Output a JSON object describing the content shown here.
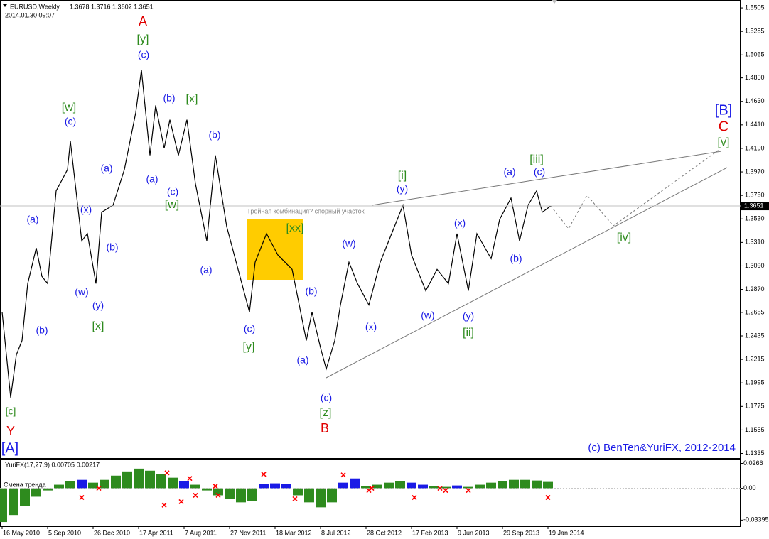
{
  "chart_data": [
    {
      "type": "line",
      "title": "EURUSD,Weekly",
      "subtitle": "1.3678 1.3716 1.3602 1.3651",
      "timestamp": "2014.01.30 09:07",
      "color": "#000000",
      "x": [
        0,
        3,
        5,
        7,
        9,
        12,
        14,
        16,
        19,
        23,
        24,
        28,
        30,
        33,
        35,
        39,
        43,
        47,
        49,
        52,
        54,
        57,
        59,
        62,
        65,
        68,
        72,
        75,
        79,
        83,
        87,
        89,
        93,
        97,
        102,
        104,
        107,
        109,
        112,
        114,
        117,
        119,
        122,
        125,
        129,
        133,
        136,
        141,
        144,
        149,
        153,
        157,
        160,
        164,
        167,
        172,
        175,
        179,
        182,
        185,
        188,
        190,
        193
      ],
      "values": [
        1.2658,
        1.1858,
        1.2258,
        1.2392,
        1.2925,
        1.3258,
        1.2992,
        1.2925,
        1.3792,
        1.3992,
        1.4258,
        1.3325,
        1.3392,
        1.2925,
        1.3592,
        1.3658,
        1.3992,
        1.4525,
        1.4925,
        1.4125,
        1.4592,
        1.4192,
        1.4458,
        1.4125,
        1.4458,
        1.3858,
        1.3325,
        1.4125,
        1.3458,
        1.3058,
        1.2658,
        1.3125,
        1.3392,
        1.3192,
        1.3058,
        1.2792,
        1.2392,
        1.2658,
        1.2325,
        1.2125,
        1.2392,
        1.2725,
        1.3125,
        1.2925,
        1.2725,
        1.3125,
        1.3325,
        1.3658,
        1.3192,
        1.2858,
        1.3058,
        1.2925,
        1.3392,
        1.2858,
        1.3392,
        1.3158,
        1.3525,
        1.3725,
        1.3325,
        1.3658,
        1.3792,
        1.3592,
        1.3651
      ],
      "xlim": [
        -0.75,
        259.75
      ],
      "xticks": [
        {
          "value": 0,
          "label": "16 May 2010"
        },
        {
          "value": 16,
          "label": "5 Sep 2010"
        },
        {
          "value": 32,
          "label": "26 Dec 2010"
        },
        {
          "value": 48,
          "label": "17 Apr 2011"
        },
        {
          "value": 64,
          "label": "7 Aug 2011"
        },
        {
          "value": 80,
          "label": "27 Nov 2011"
        },
        {
          "value": 96,
          "label": "18 Mar 2012"
        },
        {
          "value": 112,
          "label": "8 Jul 2012"
        },
        {
          "value": 128,
          "label": "28 Oct 2012"
        },
        {
          "value": 144,
          "label": "17 Feb 2013"
        },
        {
          "value": 160,
          "label": "9 Jun 2013"
        },
        {
          "value": 176,
          "label": "29 Sep 2013"
        },
        {
          "value": 192,
          "label": "19 Jan 2014"
        }
      ],
      "ylim": [
        1.1292,
        1.5572
      ],
      "yticks": [
        {
          "value": 1.5505,
          "label": "1.5505"
        },
        {
          "value": 1.5285,
          "label": "1.5285"
        },
        {
          "value": 1.5065,
          "label": "1.5065"
        },
        {
          "value": 1.485,
          "label": "1.4850"
        },
        {
          "value": 1.463,
          "label": "1.4630"
        },
        {
          "value": 1.441,
          "label": "1.4410"
        },
        {
          "value": 1.419,
          "label": "1.4190"
        },
        {
          "value": 1.397,
          "label": "1.3970"
        },
        {
          "value": 1.375,
          "label": "1.3750"
        },
        {
          "value": 1.353,
          "label": "1.3530"
        },
        {
          "value": 1.331,
          "label": "1.3310"
        },
        {
          "value": 1.309,
          "label": "1.3090"
        },
        {
          "value": 1.287,
          "label": "1.2870"
        },
        {
          "value": 1.2655,
          "label": "1.2655"
        },
        {
          "value": 1.2435,
          "label": "1.2435"
        },
        {
          "value": 1.2215,
          "label": "1.2215"
        },
        {
          "value": 1.1995,
          "label": "1.1995"
        },
        {
          "value": 1.1775,
          "label": "1.1775"
        },
        {
          "value": 1.1555,
          "label": "1.1555"
        },
        {
          "value": 1.1335,
          "label": "1.1335"
        }
      ],
      "last_price": {
        "value": 1.3651,
        "label": "1.3651"
      },
      "note": "Тройная комбинация? спорный участок",
      "copyright": "(c)  BenTen&YuriFX,  2012-2014",
      "annotations": [
        {
          "text": "A",
          "color": "#e00000"
        },
        {
          "text": "[y]",
          "color": "#2e8b1e"
        },
        {
          "text": "(c)",
          "color": "#1a1ae6"
        },
        {
          "text": "(b)",
          "color": "#1a1ae6"
        },
        {
          "text": "[x]",
          "color": "#2e8b1e"
        },
        {
          "text": "[w]",
          "color": "#2e8b1e"
        },
        {
          "text": "(c)",
          "color": "#1a1ae6"
        },
        {
          "text": "(b)",
          "color": "#1a1ae6"
        },
        {
          "text": "(a)",
          "color": "#1a1ae6"
        },
        {
          "text": "(a)",
          "color": "#1a1ae6"
        },
        {
          "text": "(c)",
          "color": "#1a1ae6"
        },
        {
          "text": "[w]",
          "color": "#2e8b1e"
        },
        {
          "text": "(x)",
          "color": "#1a1ae6"
        },
        {
          "text": "(a)",
          "color": "#1a1ae6"
        },
        {
          "text": "(b)",
          "color": "#1a1ae6"
        },
        {
          "text": "(w)",
          "color": "#1a1ae6"
        },
        {
          "text": "(y)",
          "color": "#1a1ae6"
        },
        {
          "text": "[x]",
          "color": "#2e8b1e"
        },
        {
          "text": "(b)",
          "color": "#1a1ae6"
        },
        {
          "text": "[c]",
          "color": "#2e8b1e"
        },
        {
          "text": "Y",
          "color": "#e00000"
        },
        {
          "text": "[A]",
          "color": "#1a1ae6"
        },
        {
          "text": "(a)",
          "color": "#1a1ae6"
        },
        {
          "text": "(c)",
          "color": "#1a1ae6"
        },
        {
          "text": "[y]",
          "color": "#2e8b1e"
        },
        {
          "text": "[xx]",
          "color": "#2e8b1e"
        },
        {
          "text": "(b)",
          "color": "#1a1ae6"
        },
        {
          "text": "(a)",
          "color": "#1a1ae6"
        },
        {
          "text": "(c)",
          "color": "#1a1ae6"
        },
        {
          "text": "[z]",
          "color": "#2e8b1e"
        },
        {
          "text": "B",
          "color": "#e00000"
        },
        {
          "text": "(w)",
          "color": "#1a1ae6"
        },
        {
          "text": "(x)",
          "color": "#1a1ae6"
        },
        {
          "text": "[i]",
          "color": "#2e8b1e"
        },
        {
          "text": "(y)",
          "color": "#1a1ae6"
        },
        {
          "text": "(w)",
          "color": "#1a1ae6"
        },
        {
          "text": "(x)",
          "color": "#1a1ae6"
        },
        {
          "text": "(y)",
          "color": "#1a1ae6"
        },
        {
          "text": "[ii]",
          "color": "#2e8b1e"
        },
        {
          "text": "(b)",
          "color": "#1a1ae6"
        },
        {
          "text": "(a)",
          "color": "#1a1ae6"
        },
        {
          "text": "[iii]",
          "color": "#2e8b1e"
        },
        {
          "text": "(c)",
          "color": "#1a1ae6"
        },
        {
          "text": "[iv]",
          "color": "#2e8b1e"
        },
        {
          "text": "[B]",
          "color": "#1a1ae6"
        },
        {
          "text": "C",
          "color": "#e00000"
        },
        {
          "text": "[v]",
          "color": "#2e8b1e"
        }
      ]
    },
    {
      "type": "bar",
      "title": "YuriFX(17,27,9) 0.00705 0.00217",
      "signal_label": "Смена тренда",
      "x": [
        0,
        4,
        8,
        12,
        16,
        20,
        24,
        28,
        32,
        36,
        40,
        44,
        48,
        52,
        56,
        60,
        64,
        68,
        72,
        76,
        80,
        84,
        88,
        92,
        96,
        100,
        104,
        108,
        112,
        116,
        120,
        124,
        128,
        132,
        136,
        140,
        144,
        148,
        152,
        156,
        160,
        164,
        168,
        172,
        176,
        180,
        184,
        188,
        192
      ],
      "series": [
        {
          "color": "#2e8b1e",
          "values": [
            -0.036,
            -0.0285,
            -0.0188,
            -0.009,
            -0.0023,
            0.0038,
            0.0075,
            null,
            0.006,
            0.009,
            0.0135,
            0.018,
            0.021,
            0.0188,
            0.015,
            0.0113,
            null,
            0.0038,
            -0.0023,
            -0.0075,
            -0.0113,
            -0.015,
            -0.0135,
            null,
            null,
            null,
            -0.0075,
            -0.015,
            -0.0203,
            -0.015,
            null,
            null,
            0.0023,
            0.0038,
            0.006,
            0.0075,
            null,
            null,
            0.0023,
            0.0015,
            null,
            0.0015,
            0.0038,
            0.006,
            0.0075,
            0.009,
            0.009,
            0.0083,
            0.0068
          ]
        },
        {
          "color": "#1a1ae6",
          "values": [
            null,
            null,
            null,
            null,
            null,
            null,
            null,
            0.009,
            null,
            null,
            null,
            null,
            null,
            null,
            null,
            null,
            0.0075,
            null,
            null,
            null,
            null,
            null,
            null,
            0.0045,
            0.0053,
            0.0045,
            null,
            null,
            null,
            null,
            0.006,
            0.0105,
            null,
            null,
            null,
            null,
            0.006,
            0.0038,
            null,
            null,
            0.003,
            null,
            null,
            null,
            null,
            null,
            null,
            null,
            null
          ]
        }
      ],
      "signals": {
        "color": "#ff0000",
        "x": [
          28,
          34,
          57,
          58,
          63,
          66,
          68,
          75,
          76,
          92,
          103,
          120,
          129,
          130,
          145,
          154,
          156,
          164,
          192
        ],
        "values": [
          -0.0098,
          0,
          -0.018,
          0.0165,
          -0.0143,
          0.0105,
          -0.0075,
          0.0023,
          -0.0075,
          0.015,
          -0.0113,
          0.0143,
          -0.0023,
          0,
          -0.0098,
          0,
          -0.0023,
          -0.0023,
          -0.0098
        ]
      },
      "ylim": [
        -0.0405,
        0.03
      ],
      "yticks": [
        0.0266,
        {
          "value": 0,
          "label": "0.00"
        },
        -0.03395
      ]
    }
  ]
}
